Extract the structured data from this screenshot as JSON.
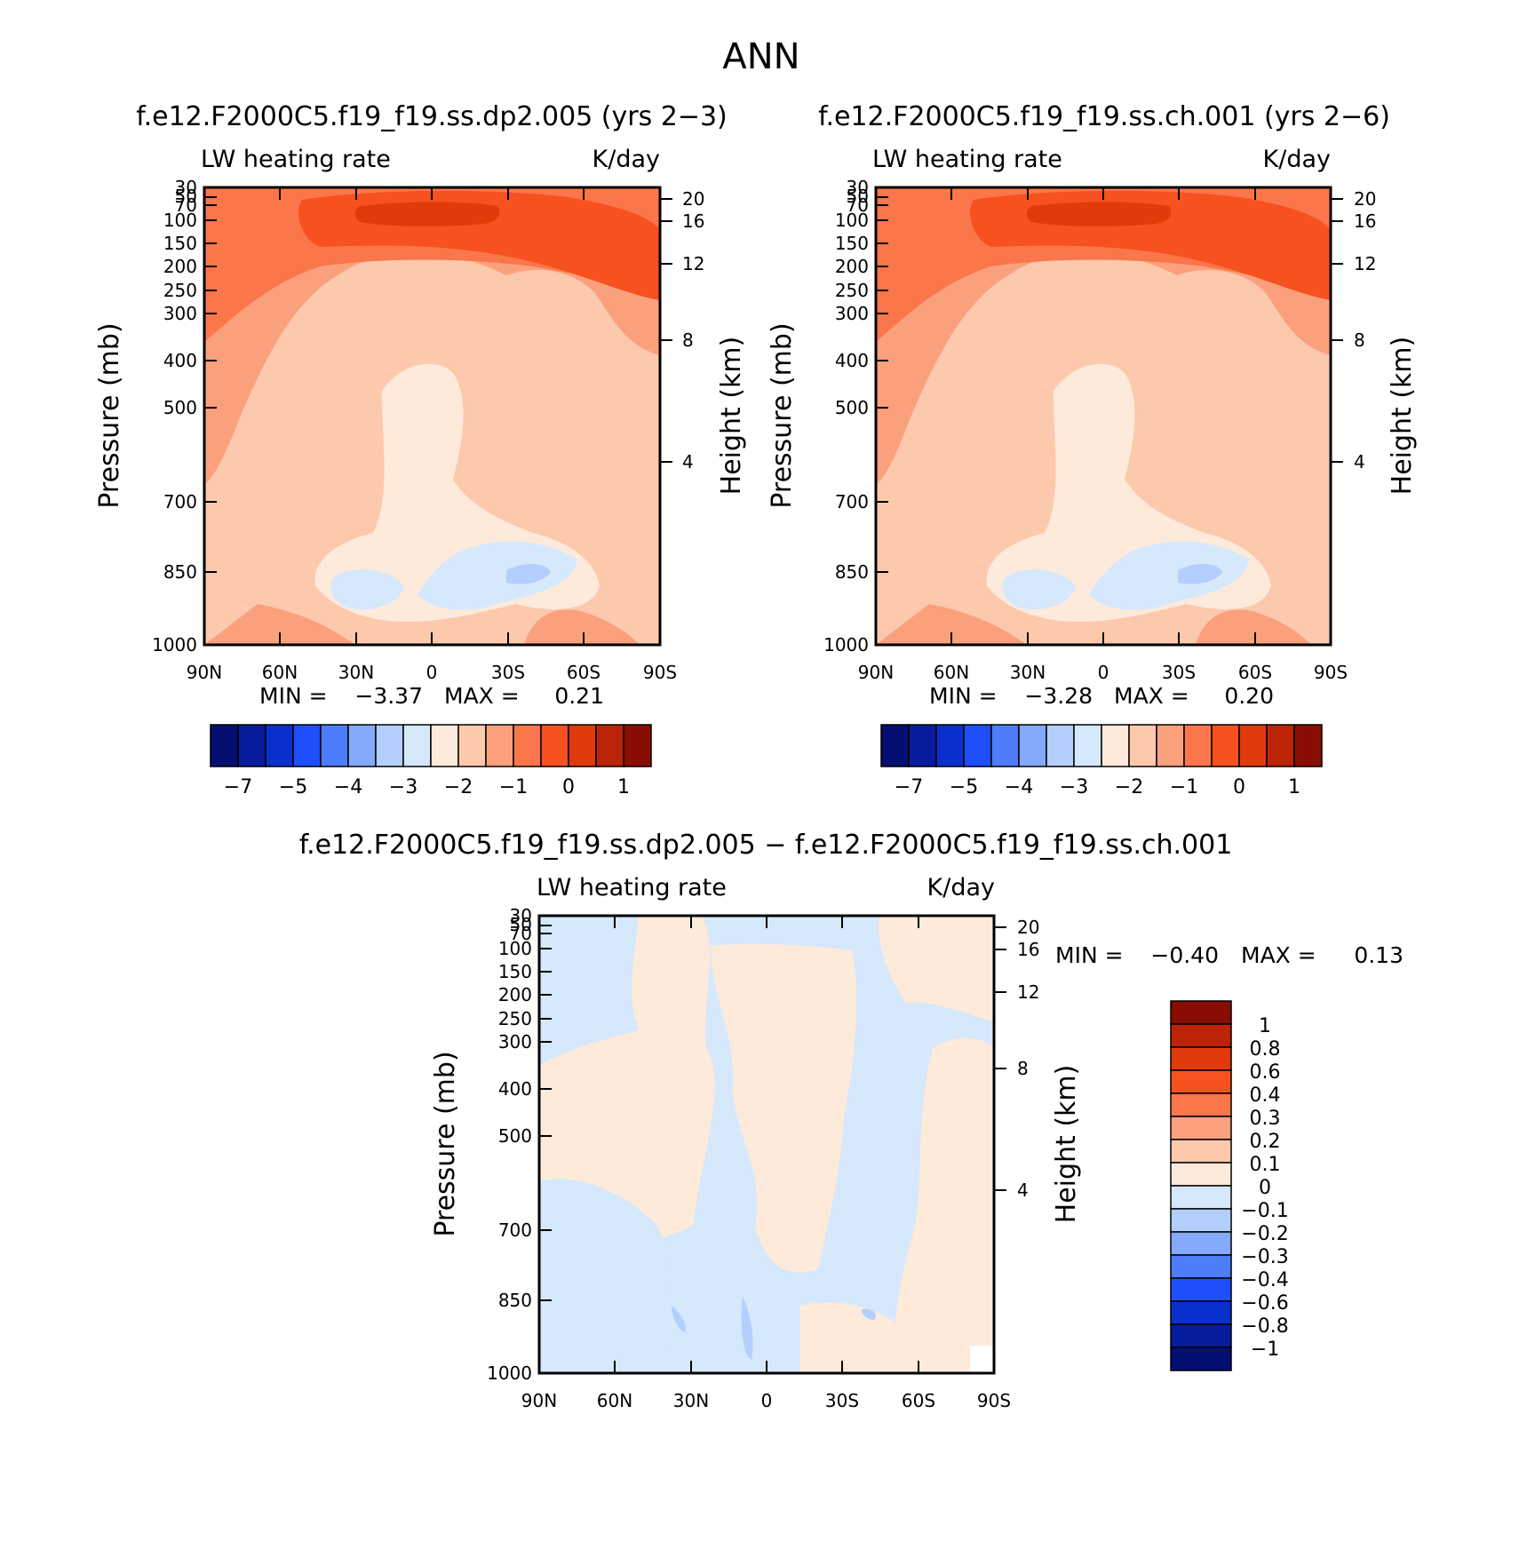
{
  "page_title": "ANN",
  "colors": {
    "warm": [
      "#fdeadb",
      "#fcc9ad",
      "#fba07d",
      "#fb764a",
      "#f6511f",
      "#e23a0b",
      "#bb2406",
      "#8a0d03"
    ],
    "cool": [
      "#d5e8fc",
      "#b2cffd",
      "#85a9fb",
      "#4e7dfb",
      "#1f4ffb",
      "#0a30ce",
      "#061c9c",
      "#050f72"
    ]
  },
  "chart_data": [
    {
      "type": "heatmap",
      "panel": "case1",
      "title": "f.e12.F2000C5.f19_f19.ss.dp2.005 (yrs 2−3)",
      "left_label": "LW heating rate",
      "right_label": "K/day",
      "ylabel": "Pressure (mb)",
      "y2label": "Height (km)",
      "pressure_ticks": [
        "30",
        "50",
        "70",
        "100",
        "150",
        "200",
        "250",
        "300",
        "400",
        "500",
        "700",
        "850",
        "1000"
      ],
      "height_ticks": [
        "20",
        "16",
        "12",
        "8",
        "4"
      ],
      "x_ticks": [
        "90N",
        "60N",
        "30N",
        "0",
        "30S",
        "60S",
        "90S"
      ],
      "ylim": [
        1000,
        30
      ],
      "xlim": [
        "90N",
        "90S"
      ],
      "stats": {
        "min_label": "MIN =",
        "min": "−3.37",
        "max_label": "MAX =",
        "max": "0.21"
      },
      "colorbar_labels": [
        "−7",
        "−5",
        "−4",
        "−3",
        "−2",
        "−1",
        "0",
        "1"
      ]
    },
    {
      "type": "heatmap",
      "panel": "case2",
      "title": "f.e12.F2000C5.f19_f19.ss.ch.001 (yrs 2−6)",
      "left_label": "LW heating rate",
      "right_label": "K/day",
      "ylabel": "Pressure (mb)",
      "y2label": "Height (km)",
      "pressure_ticks": [
        "30",
        "50",
        "70",
        "100",
        "150",
        "200",
        "250",
        "300",
        "400",
        "500",
        "700",
        "850",
        "1000"
      ],
      "height_ticks": [
        "20",
        "16",
        "12",
        "8",
        "4"
      ],
      "x_ticks": [
        "90N",
        "60N",
        "30N",
        "0",
        "30S",
        "60S",
        "90S"
      ],
      "ylim": [
        1000,
        30
      ],
      "xlim": [
        "90N",
        "90S"
      ],
      "stats": {
        "min_label": "MIN =",
        "min": "−3.28",
        "max_label": "MAX =",
        "max": "0.20"
      },
      "colorbar_labels": [
        "−7",
        "−5",
        "−4",
        "−3",
        "−2",
        "−1",
        "0",
        "1"
      ]
    },
    {
      "type": "heatmap",
      "panel": "difference",
      "title": "f.e12.F2000C5.f19_f19.ss.dp2.005 − f.e12.F2000C5.f19_f19.ss.ch.001",
      "left_label": "LW heating rate",
      "right_label": "K/day",
      "ylabel": "Pressure (mb)",
      "y2label": "Height (km)",
      "pressure_ticks": [
        "30",
        "50",
        "70",
        "100",
        "150",
        "200",
        "250",
        "300",
        "400",
        "500",
        "700",
        "850",
        "1000"
      ],
      "height_ticks": [
        "20",
        "16",
        "12",
        "8",
        "4"
      ],
      "x_ticks": [
        "90N",
        "60N",
        "30N",
        "0",
        "30S",
        "60S",
        "90S"
      ],
      "ylim": [
        1000,
        30
      ],
      "xlim": [
        "90N",
        "90S"
      ],
      "stats": {
        "min_label": "MIN =",
        "min": "−0.40",
        "max_label": "MAX =",
        "max": "0.13"
      },
      "colorbar_labels": [
        "1",
        "0.8",
        "0.6",
        "0.4",
        "0.3",
        "0.2",
        "0.1",
        "0",
        "−0.1",
        "−0.2",
        "−0.3",
        "−0.4",
        "−0.6",
        "−0.8",
        "−1"
      ]
    }
  ]
}
